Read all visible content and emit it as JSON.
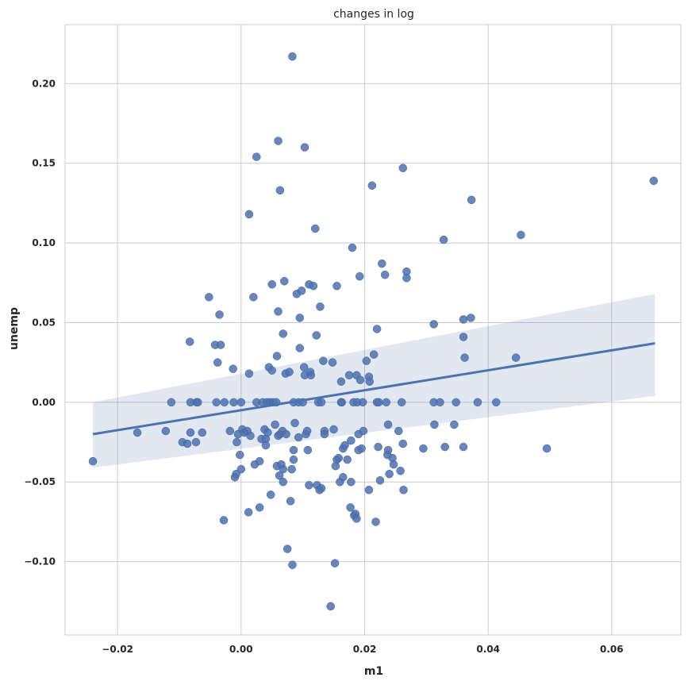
{
  "chart_data": {
    "type": "scatter",
    "title": "changes in log",
    "xlabel": "m1",
    "ylabel": "unemp",
    "xlim": [
      -0.0285,
      0.0712
    ],
    "ylim": [
      -0.146,
      0.237
    ],
    "xticks": [
      -0.02,
      0.0,
      0.02,
      0.04,
      0.06
    ],
    "xtick_labels": [
      "−0.02",
      "0.00",
      "0.02",
      "0.04",
      "0.06"
    ],
    "yticks": [
      -0.1,
      -0.05,
      0.0,
      0.05,
      0.1,
      0.15,
      0.2
    ],
    "ytick_labels": [
      "−0.10",
      "−0.05",
      "0.00",
      "0.05",
      "0.10",
      "0.15",
      "0.20"
    ],
    "grid": true,
    "colors": {
      "points": "#4c72b0",
      "line": "#4c72b0",
      "band": "#4c72b0"
    },
    "regression": {
      "x": [
        -0.024,
        0.067
      ],
      "y": [
        -0.02,
        0.037
      ],
      "ci_lower": [
        -0.041,
        0.004
      ],
      "ci_upper": [
        0.0,
        0.068
      ]
    },
    "points": [
      [
        -0.024,
        -0.037
      ],
      [
        -0.0168,
        -0.019
      ],
      [
        -0.0122,
        -0.018
      ],
      [
        -0.0113,
        0.0
      ],
      [
        -0.0095,
        -0.025
      ],
      [
        -0.0087,
        -0.026
      ],
      [
        -0.0083,
        0.038
      ],
      [
        -0.0082,
        -0.019
      ],
      [
        -0.0082,
        0.0
      ],
      [
        -0.0073,
        -0.025
      ],
      [
        -0.0072,
        0.0
      ],
      [
        -0.007,
        0.0
      ],
      [
        -0.0063,
        -0.019
      ],
      [
        -0.0052,
        0.066
      ],
      [
        -0.0042,
        0.036
      ],
      [
        -0.004,
        0.0
      ],
      [
        -0.0038,
        0.025
      ],
      [
        -0.0035,
        0.055
      ],
      [
        -0.0033,
        0.036
      ],
      [
        -0.0028,
        -0.074
      ],
      [
        -0.0027,
        0.0
      ],
      [
        -0.0018,
        -0.018
      ],
      [
        -0.0013,
        0.021
      ],
      [
        -0.0012,
        0.0
      ],
      [
        -0.001,
        -0.047
      ],
      [
        -0.0008,
        -0.045
      ],
      [
        -0.0007,
        -0.025
      ],
      [
        -0.0005,
        -0.02
      ],
      [
        -0.0002,
        -0.033
      ],
      [
        0.0,
        0.0
      ],
      [
        0.0,
        -0.042
      ],
      [
        0.0002,
        -0.017
      ],
      [
        0.0005,
        -0.019
      ],
      [
        0.001,
        -0.018
      ],
      [
        0.0012,
        -0.069
      ],
      [
        0.0013,
        0.118
      ],
      [
        0.0013,
        0.018
      ],
      [
        0.0015,
        -0.021
      ],
      [
        0.002,
        0.066
      ],
      [
        0.0022,
        -0.039
      ],
      [
        0.0025,
        0.154
      ],
      [
        0.0025,
        0.0
      ],
      [
        0.003,
        -0.037
      ],
      [
        0.003,
        -0.066
      ],
      [
        0.0033,
        -0.023
      ],
      [
        0.0035,
        0.0
      ],
      [
        0.0038,
        -0.017
      ],
      [
        0.004,
        -0.023
      ],
      [
        0.004,
        -0.027
      ],
      [
        0.0042,
        0.0
      ],
      [
        0.0043,
        -0.019
      ],
      [
        0.0045,
        0.022
      ],
      [
        0.0047,
        0.0
      ],
      [
        0.0048,
        -0.058
      ],
      [
        0.005,
        0.074
      ],
      [
        0.005,
        0.02
      ],
      [
        0.0052,
        0.0
      ],
      [
        0.0055,
        -0.014
      ],
      [
        0.0057,
        0.0
      ],
      [
        0.0058,
        0.029
      ],
      [
        0.0058,
        -0.04
      ],
      [
        0.006,
        0.164
      ],
      [
        0.006,
        0.057
      ],
      [
        0.006,
        -0.021
      ],
      [
        0.0062,
        -0.046
      ],
      [
        0.0063,
        0.133
      ],
      [
        0.0063,
        -0.02
      ],
      [
        0.0065,
        -0.039
      ],
      [
        0.0067,
        -0.018
      ],
      [
        0.0068,
        0.043
      ],
      [
        0.0068,
        -0.05
      ],
      [
        0.0068,
        -0.042
      ],
      [
        0.007,
        0.076
      ],
      [
        0.0072,
        0.018
      ],
      [
        0.0073,
        -0.02
      ],
      [
        0.0075,
        -0.092
      ],
      [
        0.0078,
        0.019
      ],
      [
        0.008,
        -0.062
      ],
      [
        0.0082,
        -0.042
      ],
      [
        0.0083,
        -0.102
      ],
      [
        0.0083,
        0.217
      ],
      [
        0.0085,
        0.0
      ],
      [
        0.0085,
        -0.036
      ],
      [
        0.0085,
        -0.03
      ],
      [
        0.0087,
        -0.013
      ],
      [
        0.009,
        0.068
      ],
      [
        0.0093,
        0.0
      ],
      [
        0.0093,
        -0.022
      ],
      [
        0.0095,
        0.034
      ],
      [
        0.0095,
        0.053
      ],
      [
        0.0098,
        0.07
      ],
      [
        0.01,
        0.0
      ],
      [
        0.0102,
        0.022
      ],
      [
        0.0103,
        0.16
      ],
      [
        0.0103,
        0.017
      ],
      [
        0.0105,
        -0.02
      ],
      [
        0.0107,
        -0.018
      ],
      [
        0.0108,
        -0.03
      ],
      [
        0.011,
        0.074
      ],
      [
        0.011,
        -0.052
      ],
      [
        0.0112,
        0.019
      ],
      [
        0.0113,
        0.017
      ],
      [
        0.0117,
        0.073
      ],
      [
        0.012,
        0.109
      ],
      [
        0.0122,
        0.042
      ],
      [
        0.0123,
        -0.052
      ],
      [
        0.0125,
        0.0
      ],
      [
        0.0127,
        -0.055
      ],
      [
        0.0128,
        0.06
      ],
      [
        0.013,
        -0.054
      ],
      [
        0.013,
        0.0
      ],
      [
        0.0133,
        0.026
      ],
      [
        0.0135,
        -0.018
      ],
      [
        0.0135,
        -0.02
      ],
      [
        0.0145,
        -0.128
      ],
      [
        0.0148,
        0.025
      ],
      [
        0.015,
        -0.017
      ],
      [
        0.0152,
        -0.101
      ],
      [
        0.0153,
        -0.04
      ],
      [
        0.0155,
        -0.036
      ],
      [
        0.0155,
        0.073
      ],
      [
        0.0158,
        -0.035
      ],
      [
        0.016,
        -0.05
      ],
      [
        0.0162,
        0.013
      ],
      [
        0.0162,
        0.0
      ],
      [
        0.0163,
        0.0
      ],
      [
        0.0165,
        -0.047
      ],
      [
        0.0165,
        -0.029
      ],
      [
        0.0168,
        -0.027
      ],
      [
        0.0172,
        -0.036
      ],
      [
        0.0175,
        0.017
      ],
      [
        0.0177,
        -0.066
      ],
      [
        0.0178,
        -0.024
      ],
      [
        0.0178,
        -0.05
      ],
      [
        0.018,
        0.097
      ],
      [
        0.0182,
        0.0
      ],
      [
        0.0183,
        -0.071
      ],
      [
        0.0185,
        -0.07
      ],
      [
        0.0187,
        0.017
      ],
      [
        0.0187,
        -0.073
      ],
      [
        0.0188,
        0.0
      ],
      [
        0.019,
        -0.03
      ],
      [
        0.019,
        -0.02
      ],
      [
        0.0192,
        0.079
      ],
      [
        0.0193,
        0.014
      ],
      [
        0.0195,
        -0.029
      ],
      [
        0.0197,
        0.0
      ],
      [
        0.0198,
        -0.018
      ],
      [
        0.0203,
        0.026
      ],
      [
        0.0207,
        -0.055
      ],
      [
        0.0207,
        0.016
      ],
      [
        0.0208,
        0.013
      ],
      [
        0.0212,
        0.136
      ],
      [
        0.0215,
        0.03
      ],
      [
        0.0218,
        -0.075
      ],
      [
        0.022,
        0.046
      ],
      [
        0.022,
        0.0
      ],
      [
        0.0222,
        -0.028
      ],
      [
        0.0223,
        0.0
      ],
      [
        0.0225,
        -0.049
      ],
      [
        0.0228,
        0.087
      ],
      [
        0.0233,
        0.08
      ],
      [
        0.0235,
        0.0
      ],
      [
        0.0237,
        -0.033
      ],
      [
        0.0238,
        -0.03
      ],
      [
        0.0238,
        -0.014
      ],
      [
        0.024,
        -0.045
      ],
      [
        0.0245,
        -0.035
      ],
      [
        0.0247,
        -0.039
      ],
      [
        0.0255,
        -0.018
      ],
      [
        0.0258,
        -0.043
      ],
      [
        0.026,
        0.0
      ],
      [
        0.0262,
        0.147
      ],
      [
        0.0262,
        -0.026
      ],
      [
        0.0263,
        -0.055
      ],
      [
        0.0268,
        0.082
      ],
      [
        0.0268,
        0.078
      ],
      [
        0.0295,
        -0.029
      ],
      [
        0.0312,
        0.049
      ],
      [
        0.0312,
        0.0
      ],
      [
        0.0313,
        -0.014
      ],
      [
        0.0322,
        0.0
      ],
      [
        0.0328,
        0.102
      ],
      [
        0.033,
        -0.028
      ],
      [
        0.0345,
        -0.014
      ],
      [
        0.0348,
        0.0
      ],
      [
        0.036,
        -0.028
      ],
      [
        0.036,
        0.041
      ],
      [
        0.036,
        0.052
      ],
      [
        0.0362,
        0.028
      ],
      [
        0.0372,
        0.053
      ],
      [
        0.0373,
        0.127
      ],
      [
        0.0383,
        0.0
      ],
      [
        0.0413,
        0.0
      ],
      [
        0.0445,
        0.028
      ],
      [
        0.0453,
        0.105
      ],
      [
        0.0495,
        -0.029
      ],
      [
        0.0668,
        0.139
      ]
    ]
  }
}
